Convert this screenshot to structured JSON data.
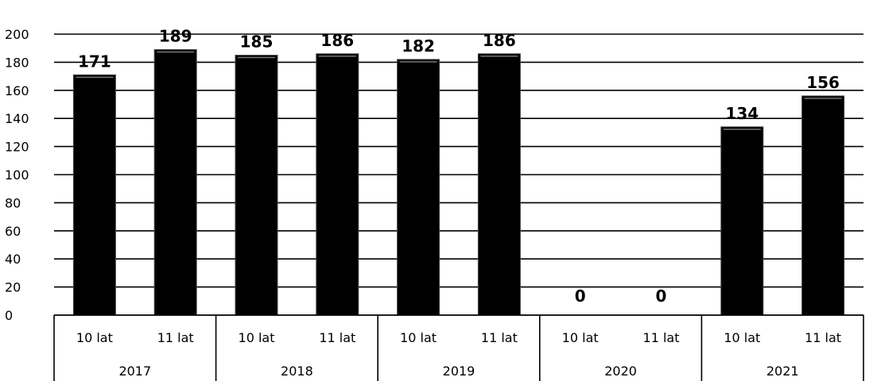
{
  "chart_data": {
    "type": "bar",
    "title": "",
    "xlabel": "",
    "ylabel": "",
    "ylim": [
      0,
      200
    ],
    "yticks": [
      0,
      20,
      40,
      60,
      80,
      100,
      120,
      140,
      160,
      180,
      200
    ],
    "grid": true,
    "groups": [
      {
        "label": "2017",
        "categories": [
          "10 lat",
          "11 lat"
        ],
        "values": [
          171,
          189
        ]
      },
      {
        "label": "2018",
        "categories": [
          "10 lat",
          "11 lat"
        ],
        "values": [
          185,
          186
        ]
      },
      {
        "label": "2019",
        "categories": [
          "10 lat",
          "11 lat"
        ],
        "values": [
          182,
          186
        ]
      },
      {
        "label": "2020",
        "categories": [
          "10 lat",
          "11 lat"
        ],
        "values": [
          0,
          0
        ]
      },
      {
        "label": "2021",
        "categories": [
          "10 lat",
          "11 lat"
        ],
        "values": [
          134,
          156
        ]
      }
    ],
    "colors": {
      "bar": "#000000",
      "grid": "#000000"
    }
  }
}
